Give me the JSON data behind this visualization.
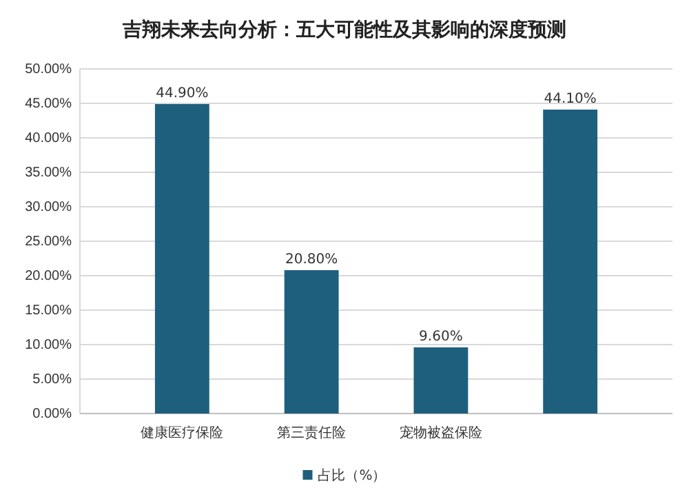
{
  "chart_data": {
    "type": "bar",
    "title": "吉翔未来去向分析：五大可能性及其影响的深度预测",
    "categories": [
      "健康医疗保险",
      "第三责任险",
      "宠物被盗保险",
      null
    ],
    "series": [
      {
        "name": "占比（%）",
        "color": "#1f5f7e",
        "values": [
          44.9,
          20.8,
          9.6,
          44.1
        ],
        "value_labels": [
          "44.90%",
          "20.80%",
          "9.60%",
          "44.10%"
        ]
      }
    ],
    "ylim": [
      0,
      50
    ],
    "yticks": [
      {
        "value": 0,
        "label": "0.00%"
      },
      {
        "value": 5,
        "label": "5.00%"
      },
      {
        "value": 10,
        "label": "10.00%"
      },
      {
        "value": 15,
        "label": "15.00%"
      },
      {
        "value": 20,
        "label": "20.00%"
      },
      {
        "value": 25,
        "label": "25.00%"
      },
      {
        "value": 30,
        "label": "30.00%"
      },
      {
        "value": 35,
        "label": "35.00%"
      },
      {
        "value": 40,
        "label": "40.00%"
      },
      {
        "value": 45,
        "label": "45.00%"
      },
      {
        "value": 50,
        "label": "50.00%"
      }
    ],
    "grid": "y",
    "legend": "bottom"
  }
}
